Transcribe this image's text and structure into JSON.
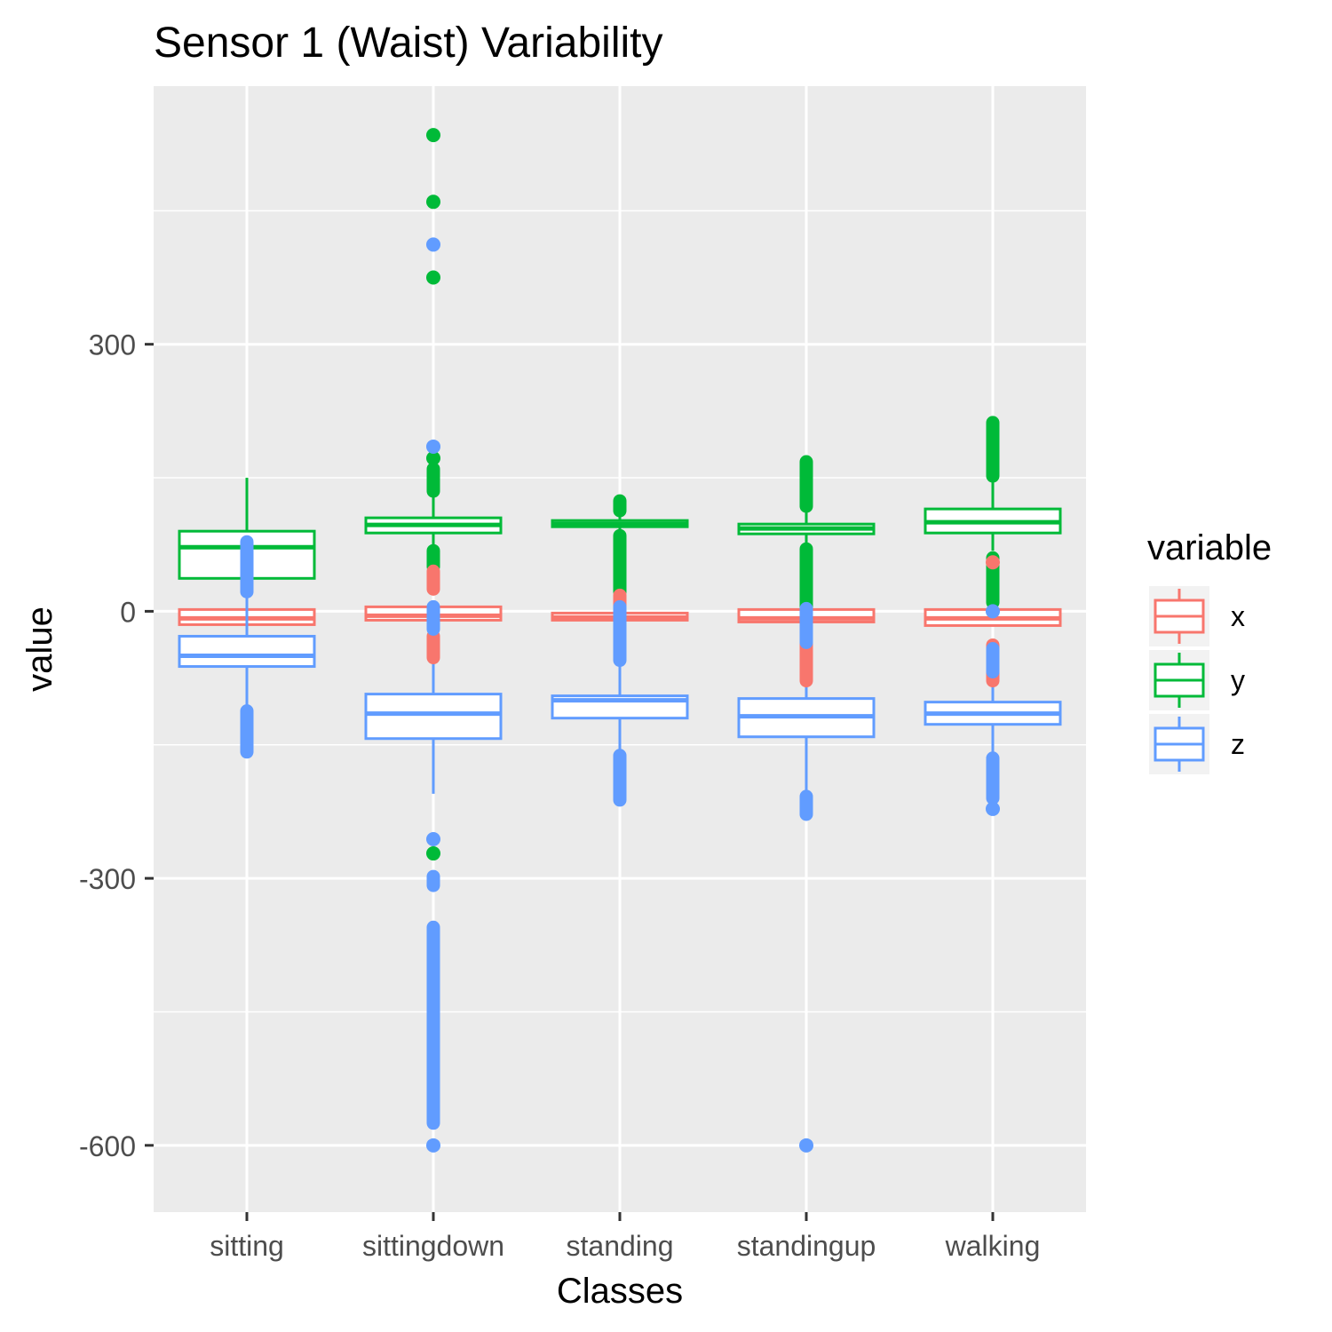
{
  "chart_data": {
    "type": "boxplot",
    "title": "Sensor 1 (Waist) Variability",
    "xlabel": "Classes",
    "ylabel": "value",
    "ylim": [
      -675,
      590
    ],
    "y_ticks": [
      {
        "value": 300,
        "label": "300"
      },
      {
        "value": 0,
        "label": "0"
      },
      {
        "value": -300,
        "label": "-300"
      },
      {
        "value": -600,
        "label": "-600"
      }
    ],
    "y_minor_ticks": [
      450,
      150,
      -150,
      -450
    ],
    "grid": true,
    "legend": {
      "title": "variable",
      "position": "right",
      "entries": [
        {
          "key": "x",
          "label": "x"
        },
        {
          "key": "y",
          "label": "y"
        },
        {
          "key": "z",
          "label": "z"
        }
      ]
    },
    "colors": {
      "x": "#F8766D",
      "y": "#00BA38",
      "z": "#619CFF",
      "panel": "#EBEBEB",
      "grid": "#FFFFFF",
      "axis_text": "#4D4D4D"
    },
    "categories": [
      "sitting",
      "sittingdown",
      "standing",
      "standingup",
      "walking"
    ],
    "series": [
      {
        "key": "x",
        "boxes": [
          {
            "q1": -15,
            "median": -8,
            "q3": 2,
            "lower": -15,
            "upper": 2,
            "outlier_runs": [],
            "outliers": []
          },
          {
            "q1": -10,
            "median": -5,
            "q3": 5,
            "lower": -10,
            "upper": 5,
            "outlier_runs": [
              [
                -52,
                -28
              ],
              [
                25,
                45
              ]
            ],
            "outliers": []
          },
          {
            "q1": -10,
            "median": -7,
            "q3": -2,
            "lower": -10,
            "upper": -2,
            "outlier_runs": [
              [
                -12,
                18
              ]
            ],
            "outliers": []
          },
          {
            "q1": -12,
            "median": -8,
            "q3": 2,
            "lower": -12,
            "upper": 2,
            "outlier_runs": [
              [
                -78,
                -35
              ]
            ],
            "outliers": []
          },
          {
            "q1": -16,
            "median": -8,
            "q3": 2,
            "lower": -16,
            "upper": 2,
            "outlier_runs": [
              [
                -78,
                -38
              ]
            ],
            "outliers": [
              55
            ]
          }
        ]
      },
      {
        "key": "y",
        "boxes": [
          {
            "q1": 37,
            "median": 72,
            "q3": 90,
            "lower": 37,
            "upper": 150,
            "outlier_runs": [],
            "outliers": []
          },
          {
            "q1": 88,
            "median": 97,
            "q3": 105,
            "lower": 64,
            "upper": 130,
            "outlier_runs": [
              [
                50,
                68
              ],
              [
                135,
                160
              ]
            ],
            "outliers": [
              172,
              375,
              535,
              460,
              -272
            ]
          },
          {
            "q1": 95,
            "median": 98,
            "q3": 102,
            "lower": 88,
            "upper": 110,
            "outlier_runs": [
              [
                22,
                85
              ],
              [
                113,
                124
              ]
            ],
            "outliers": []
          },
          {
            "q1": 87,
            "median": 93,
            "q3": 98,
            "lower": 72,
            "upper": 115,
            "outlier_runs": [
              [
                2,
                70
              ],
              [
                118,
                168
              ]
            ],
            "outliers": []
          },
          {
            "q1": 88,
            "median": 100,
            "q3": 115,
            "lower": 68,
            "upper": 150,
            "outlier_runs": [
              [
                10,
                60
              ],
              [
                152,
                212
              ]
            ],
            "outliers": []
          }
        ]
      },
      {
        "key": "z",
        "boxes": [
          {
            "q1": -62,
            "median": -50,
            "q3": -28,
            "lower": -115,
            "upper": 25,
            "outlier_runs": [
              [
                -158,
                -112
              ],
              [
                22,
                78
              ]
            ],
            "outliers": []
          },
          {
            "q1": -143,
            "median": -115,
            "q3": -93,
            "lower": -205,
            "upper": -15,
            "outlier_runs": [
              [
                -575,
                -355
              ],
              [
                -308,
                -298
              ],
              [
                -20,
                5
              ]
            ],
            "outliers": [
              -600,
              -256,
              185,
              412
            ]
          },
          {
            "q1": -120,
            "median": -100,
            "q3": -95,
            "lower": -160,
            "upper": -55,
            "outlier_runs": [
              [
                -212,
                -162
              ],
              [
                -55,
                5
              ]
            ],
            "outliers": []
          },
          {
            "q1": -141,
            "median": -118,
            "q3": -98,
            "lower": -225,
            "upper": -35,
            "outlier_runs": [
              [
                -228,
                -208
              ],
              [
                -35,
                3
              ]
            ],
            "outliers": [
              -600
            ]
          },
          {
            "q1": -127,
            "median": -115,
            "q3": -102,
            "lower": -165,
            "upper": -80,
            "outlier_runs": [
              [
                -210,
                -165
              ],
              [
                -68,
                -42
              ]
            ],
            "outliers": [
              -222,
              0
            ]
          }
        ]
      }
    ]
  }
}
